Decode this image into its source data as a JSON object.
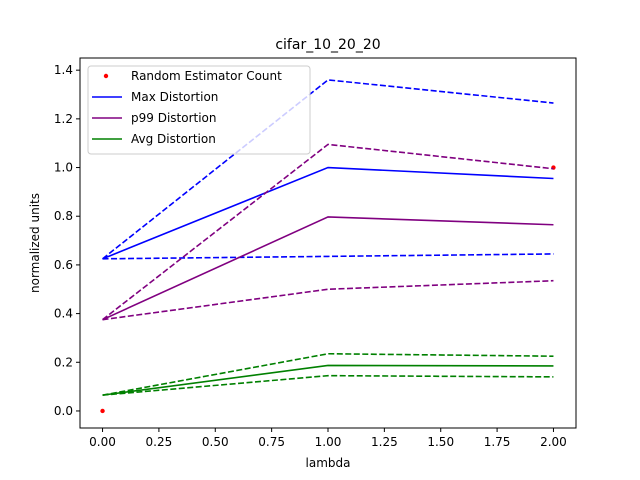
{
  "chart_data": {
    "type": "line",
    "title": "cifar_10_20_20",
    "xlabel": "lambda",
    "ylabel": "normalized units",
    "xlim": [
      -0.1,
      2.1
    ],
    "ylim": [
      -0.07,
      1.45
    ],
    "xticks": [
      0.0,
      0.25,
      0.5,
      0.75,
      1.0,
      1.25,
      1.5,
      1.75,
      2.0
    ],
    "xtick_labels": [
      "0.00",
      "0.25",
      "0.50",
      "0.75",
      "1.00",
      "1.25",
      "1.50",
      "1.75",
      "2.00"
    ],
    "yticks": [
      0.0,
      0.2,
      0.4,
      0.6,
      0.8,
      1.0,
      1.2,
      1.4
    ],
    "ytick_labels": [
      "0.0",
      "0.2",
      "0.4",
      "0.6",
      "0.8",
      "1.0",
      "1.2",
      "1.4"
    ],
    "grid": false,
    "legend_position": "top-left",
    "x": [
      0,
      1,
      2
    ],
    "series": [
      {
        "name": "Random Estimator Count",
        "style": "points",
        "color": "#ff0000",
        "x": [
          0,
          2
        ],
        "values": [
          0.0,
          1.0
        ]
      },
      {
        "name": "Max Distortion",
        "style": "solid",
        "color": "#0000ff",
        "values": [
          0.625,
          1.0,
          0.955
        ]
      },
      {
        "style": "dashed",
        "color": "#0000ff",
        "values": [
          0.625,
          1.36,
          1.265
        ]
      },
      {
        "style": "dashed",
        "color": "#0000ff",
        "values": [
          0.625,
          0.635,
          0.645
        ]
      },
      {
        "name": "p99 Distortion",
        "style": "solid",
        "color": "#800080",
        "values": [
          0.375,
          0.797,
          0.765
        ]
      },
      {
        "style": "dashed",
        "color": "#800080",
        "values": [
          0.375,
          1.095,
          0.995
        ]
      },
      {
        "style": "dashed",
        "color": "#800080",
        "values": [
          0.375,
          0.5,
          0.535
        ]
      },
      {
        "name": "Avg Distortion",
        "style": "solid",
        "color": "#008000",
        "values": [
          0.065,
          0.187,
          0.185
        ]
      },
      {
        "style": "dashed",
        "color": "#008000",
        "values": [
          0.065,
          0.235,
          0.225
        ]
      },
      {
        "style": "dashed",
        "color": "#008000",
        "values": [
          0.065,
          0.145,
          0.14
        ]
      }
    ]
  }
}
